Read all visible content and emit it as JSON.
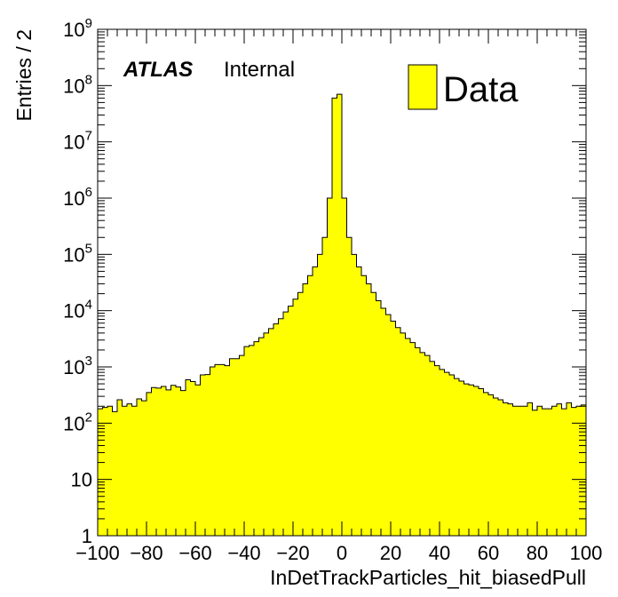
{
  "chart_data": {
    "type": "bar",
    "xlabel": "InDetTrackParticles_hit_biasedPull",
    "ylabel": "Entries / 2",
    "xlim": [
      -100,
      100
    ],
    "ylim": [
      1,
      1000000000
    ],
    "yscale": "log",
    "bin_width": 2,
    "fill_color": "#ffff00",
    "edge_color": "#000000",
    "x_tick_labels": [
      "−100",
      "−80",
      "−60",
      "−40",
      "−20",
      "0",
      "20",
      "40",
      "60",
      "80",
      "100"
    ],
    "y_tick_labels": [
      {
        "base": "1",
        "exp": ""
      },
      {
        "base": "10",
        "exp": ""
      },
      {
        "base": "10",
        "exp": "2"
      },
      {
        "base": "10",
        "exp": "3"
      },
      {
        "base": "10",
        "exp": "4"
      },
      {
        "base": "10",
        "exp": "5"
      },
      {
        "base": "10",
        "exp": "6"
      },
      {
        "base": "10",
        "exp": "7"
      },
      {
        "base": "10",
        "exp": "8"
      },
      {
        "base": "10",
        "exp": "9"
      }
    ],
    "experiment_label": "ATLAS",
    "status_label": "Internal",
    "legend": {
      "entries": [
        "Data"
      ],
      "placement": "top-right"
    },
    "series": [
      {
        "name": "Data",
        "bin_low_edges": [
          -100,
          -98,
          -96,
          -94,
          -92,
          -90,
          -88,
          -86,
          -84,
          -82,
          -80,
          -78,
          -76,
          -74,
          -72,
          -70,
          -68,
          -66,
          -64,
          -62,
          -60,
          -58,
          -56,
          -54,
          -52,
          -50,
          -48,
          -46,
          -44,
          -42,
          -40,
          -38,
          -36,
          -34,
          -32,
          -30,
          -28,
          -26,
          -24,
          -22,
          -20,
          -18,
          -16,
          -14,
          -12,
          -10,
          -8,
          -6,
          -4,
          -2,
          0,
          2,
          4,
          6,
          8,
          10,
          12,
          14,
          16,
          18,
          20,
          22,
          24,
          26,
          28,
          30,
          32,
          34,
          36,
          38,
          40,
          42,
          44,
          46,
          48,
          50,
          52,
          54,
          56,
          58,
          60,
          62,
          64,
          66,
          68,
          70,
          72,
          74,
          76,
          78,
          80,
          82,
          84,
          86,
          88,
          90,
          92,
          94,
          96,
          98
        ],
        "values": [
          180,
          190,
          200,
          160,
          260,
          200,
          220,
          200,
          270,
          250,
          350,
          430,
          420,
          450,
          390,
          470,
          440,
          380,
          590,
          550,
          480,
          720,
          730,
          1000,
          1100,
          1100,
          1050,
          1400,
          1400,
          1600,
          2300,
          2400,
          2800,
          3300,
          4000,
          4800,
          5800,
          7200,
          9500,
          12000,
          16000,
          21000,
          30000,
          42000,
          60000,
          100000,
          200000,
          1000000,
          60000000,
          70000000,
          1000000,
          200000,
          100000,
          60000,
          42000,
          30000,
          21000,
          15000,
          11000,
          8500,
          6500,
          5000,
          4000,
          3200,
          2700,
          2200,
          1800,
          1600,
          1250,
          1050,
          900,
          800,
          720,
          620,
          560,
          500,
          480,
          450,
          410,
          350,
          320,
          280,
          260,
          230,
          220,
          200,
          200,
          200,
          230,
          170,
          200,
          180,
          180,
          200,
          220,
          180,
          230,
          190,
          200,
          210
        ]
      }
    ]
  }
}
